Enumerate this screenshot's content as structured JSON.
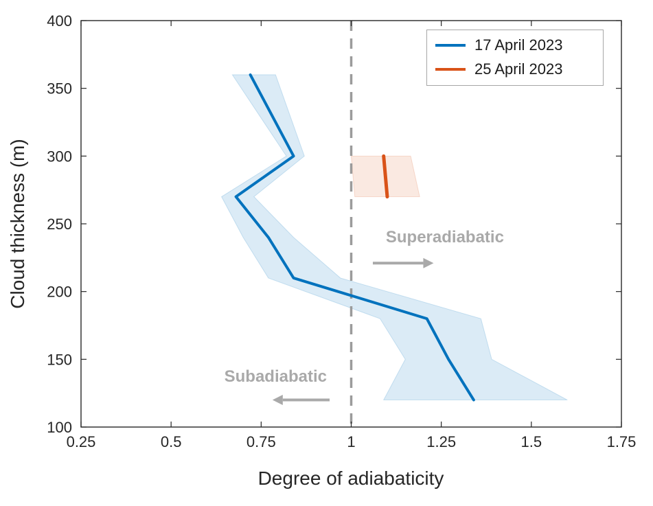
{
  "chart_data": {
    "type": "line",
    "title": "",
    "xlabel": "Degree of adiabaticity",
    "ylabel": "Cloud thickness (m)",
    "xlim": [
      0.25,
      1.75
    ],
    "ylim": [
      100,
      400
    ],
    "xticks": [
      0.25,
      0.5,
      0.75,
      1,
      1.25,
      1.5,
      1.75
    ],
    "xtick_labels": [
      "0.25",
      "0.5",
      "0.75",
      "1",
      "1.25",
      "1.5",
      "1.75"
    ],
    "yticks": [
      100,
      150,
      200,
      250,
      300,
      350,
      400
    ],
    "ytick_labels": [
      "100",
      "150",
      "200",
      "250",
      "300",
      "350",
      "400"
    ],
    "grid": false,
    "frame_color": "#262626",
    "reference_line": {
      "x": 1,
      "color": "#9b9b9b",
      "style": "dashed"
    },
    "series": [
      {
        "name": "17 April 2023",
        "color": "#0072BD",
        "line_width": 4,
        "band_opacity": 0.14,
        "y": [
          360,
          300,
          270,
          240,
          210,
          180,
          150,
          120
        ],
        "x": [
          0.72,
          0.84,
          0.68,
          0.77,
          0.84,
          1.21,
          1.27,
          1.34
        ],
        "band_low": [
          0.67,
          0.82,
          0.64,
          0.7,
          0.77,
          1.08,
          1.15,
          1.09
        ],
        "band_high": [
          0.79,
          0.87,
          0.73,
          0.84,
          0.97,
          1.36,
          1.39,
          1.6
        ]
      },
      {
        "name": "25 April 2023",
        "color": "#D95319",
        "line_width": 5,
        "band_opacity": 0.13,
        "y": [
          300,
          270
        ],
        "x": [
          1.09,
          1.1
        ],
        "band_low": [
          1.0,
          1.01
        ],
        "band_high": [
          1.165,
          1.19
        ]
      }
    ],
    "legend": {
      "position": "top-right",
      "entries": [
        {
          "label": "17 April 2023",
          "color": "#0072BD"
        },
        {
          "label": "25 April 2023",
          "color": "#D95319"
        }
      ]
    },
    "annotations": [
      {
        "text": "Superadiabatic",
        "x": 1.26,
        "y": 240,
        "color": "#a9a9a9",
        "arrow": {
          "x_from": 1.06,
          "x_to": 1.2,
          "y": 221,
          "direction": "right"
        }
      },
      {
        "text": "Subadiabatic",
        "x": 0.79,
        "y": 137,
        "color": "#a9a9a9",
        "arrow": {
          "x_from": 0.94,
          "x_to": 0.81,
          "y": 120,
          "direction": "left"
        }
      }
    ]
  }
}
